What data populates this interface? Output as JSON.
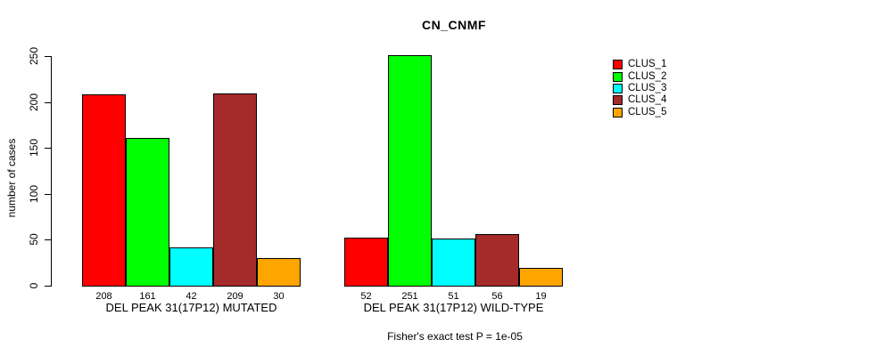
{
  "chart_data": {
    "type": "bar",
    "title": "CN_CNMF",
    "ylabel": "number of cases",
    "ylim": [
      0,
      250
    ],
    "yticks": [
      0,
      50,
      100,
      150,
      200,
      250
    ],
    "grid": false,
    "legend_position": "right",
    "categories": [
      "DEL PEAK 31(17P12) MUTATED",
      "DEL PEAK 31(17P12) WILD-TYPE"
    ],
    "series": [
      {
        "name": "CLUS_1",
        "color": "#FF0000",
        "values": [
          208,
          52
        ]
      },
      {
        "name": "CLUS_2",
        "color": "#00FF00",
        "values": [
          161,
          251
        ]
      },
      {
        "name": "CLUS_3",
        "color": "#00FFFF",
        "values": [
          42,
          51
        ]
      },
      {
        "name": "CLUS_4",
        "color": "#A52A2A",
        "values": [
          209,
          56
        ]
      },
      {
        "name": "CLUS_5",
        "color": "#FFA500",
        "values": [
          30,
          19
        ]
      }
    ],
    "bar_value_labels": [
      [
        "208",
        "161",
        "42",
        "209",
        "30"
      ],
      [
        "52",
        "251",
        "51",
        "56",
        "19"
      ]
    ],
    "footnote": "Fisher's exact test P = 1e-05"
  }
}
